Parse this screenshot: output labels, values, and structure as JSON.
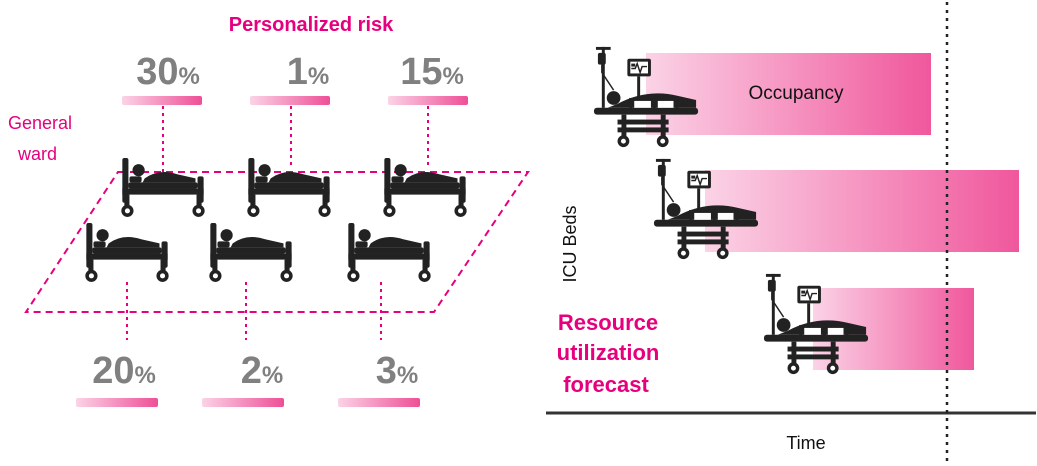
{
  "left": {
    "title": "Personalized risk",
    "ward_label_line1": "General",
    "ward_label_line2": "ward",
    "percent_sign": "%",
    "top_risks": [
      "30",
      "1",
      "15"
    ],
    "bottom_risks": [
      "20",
      "2",
      "3"
    ]
  },
  "right": {
    "y_axis_label": "ICU Beds",
    "x_axis_label": "Time",
    "occupancy_label": "Occupancy",
    "forecast_line1": "Resource",
    "forecast_line2": "utilization",
    "forecast_line3": "forecast"
  },
  "colors": {
    "accent": "#e6007e",
    "gray_text": "#808080",
    "icon": "#222222"
  }
}
